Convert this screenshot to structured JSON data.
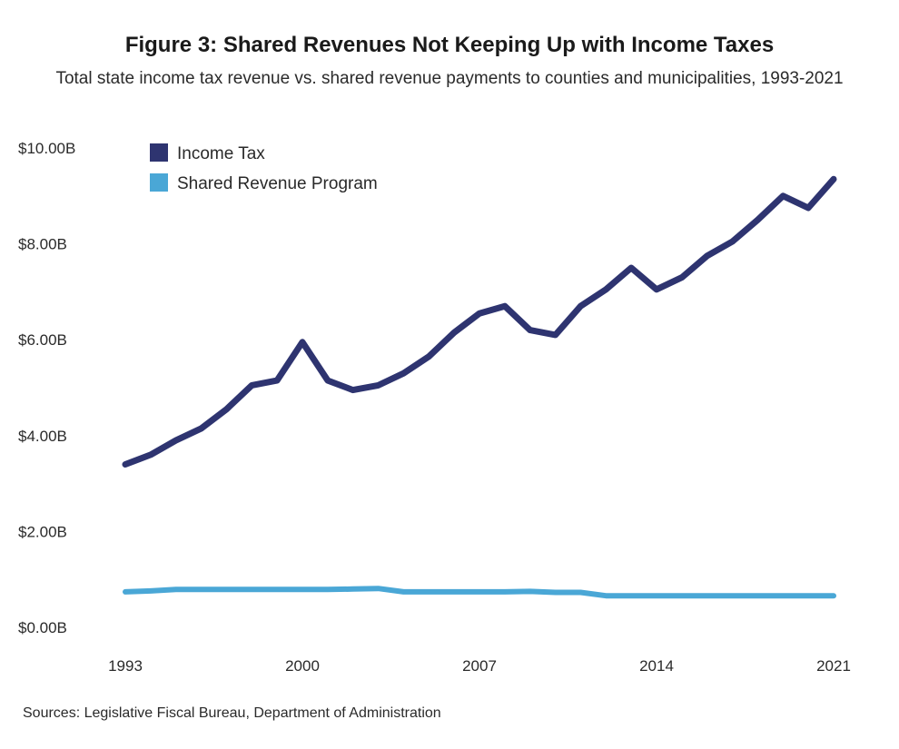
{
  "title": "Figure 3: Shared Revenues Not Keeping Up with Income Taxes",
  "subtitle": "Total state income tax revenue vs. shared revenue payments to counties and municipalities, 1993-2021",
  "source": "Sources: Legislative Fiscal Bureau, Department of Administration",
  "colors": {
    "income_tax": "#2e3470",
    "shared_revenue": "#4aa7d6"
  },
  "chart_data": {
    "type": "line",
    "title": "Figure 3: Shared Revenues Not Keeping Up with Income Taxes",
    "subtitle": "Total state income tax revenue vs. shared revenue payments to counties and municipalities, 1993-2021",
    "xlabel": "",
    "ylabel": "",
    "x": [
      1993,
      1994,
      1995,
      1996,
      1997,
      1998,
      1999,
      2000,
      2001,
      2002,
      2003,
      2004,
      2005,
      2006,
      2007,
      2008,
      2009,
      2010,
      2011,
      2012,
      2013,
      2014,
      2015,
      2016,
      2017,
      2018,
      2019,
      2020,
      2021
    ],
    "x_ticks": [
      "1993",
      "2000",
      "2007",
      "2014",
      "2021"
    ],
    "y_ticks": [
      "$0.00B",
      "$2.00B",
      "$4.00B",
      "$6.00B",
      "$8.00B",
      "$10.00B"
    ],
    "ylim": [
      0,
      10
    ],
    "grid": false,
    "legend_position": "top-left",
    "series": [
      {
        "name": "Income Tax",
        "values": [
          3.4,
          3.6,
          3.9,
          4.15,
          4.55,
          5.05,
          5.15,
          5.95,
          5.15,
          4.95,
          5.05,
          5.3,
          5.65,
          6.15,
          6.55,
          6.7,
          6.2,
          6.1,
          6.7,
          7.05,
          7.5,
          7.05,
          7.3,
          7.75,
          8.05,
          8.5,
          9.0,
          8.75,
          9.35
        ]
      },
      {
        "name": "Shared Revenue Program",
        "values": [
          0.74,
          0.76,
          0.79,
          0.79,
          0.79,
          0.79,
          0.79,
          0.79,
          0.79,
          0.8,
          0.81,
          0.74,
          0.74,
          0.74,
          0.74,
          0.74,
          0.75,
          0.73,
          0.73,
          0.66,
          0.66,
          0.66,
          0.66,
          0.66,
          0.66,
          0.66,
          0.66,
          0.66,
          0.66
        ]
      }
    ]
  }
}
